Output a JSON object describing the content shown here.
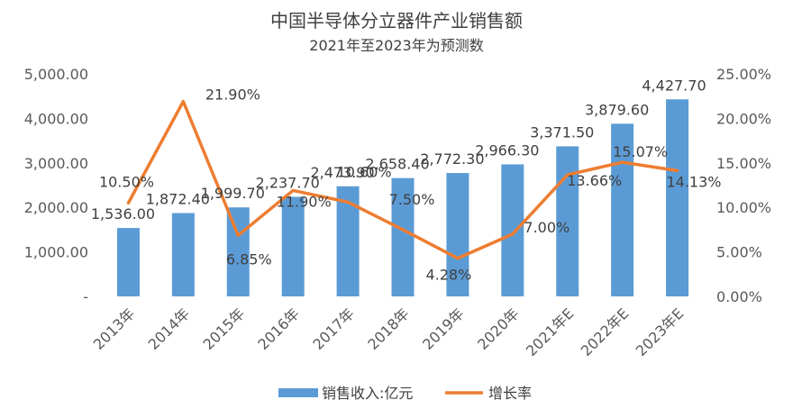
{
  "chart_data": {
    "type": "bar",
    "title": "中国半导体分立器件产业销售额",
    "subtitle": "2021年至2023年为预测数",
    "categories": [
      "2013年",
      "2014年",
      "2015年",
      "2016年",
      "2017年",
      "2018年",
      "2019年",
      "2020年",
      "2021年E",
      "2022年E",
      "2023年E"
    ],
    "series": [
      {
        "name": "销售收入:亿元",
        "type": "bar",
        "axis": "left",
        "color": "#5B9BD5",
        "values": [
          1536.0,
          1872.4,
          1999.7,
          2237.7,
          2473.9,
          2658.4,
          2772.3,
          2966.3,
          3371.5,
          3879.6,
          4427.7
        ],
        "labels": [
          "1,536.00",
          "1,872.40",
          "1,999.70",
          "2,237.70",
          "2,473.90",
          "2,658.40",
          "2,772.30",
          "2,966.30",
          "3,371.50",
          "3,879.60",
          "4,427.70"
        ]
      },
      {
        "name": "增长率",
        "type": "line",
        "axis": "right",
        "color": "#ED7D31",
        "values": [
          10.5,
          21.9,
          6.85,
          11.9,
          10.6,
          7.5,
          4.28,
          7.0,
          13.66,
          15.07,
          14.13
        ],
        "labels": [
          "10.50%",
          "21.90%",
          "6.85%",
          "11.90%",
          "10.60%",
          "7.50%",
          "4.28%",
          "7.00%",
          "13.66%",
          "15.07%",
          "14.13%"
        ]
      }
    ],
    "y_left": {
      "min": 0,
      "max": 5000,
      "ticks": [
        "-",
        "1,000.00",
        "2,000.00",
        "3,000.00",
        "4,000.00",
        "5,000.00"
      ]
    },
    "y_right": {
      "min": 0,
      "max": 25,
      "ticks": [
        "0.00%",
        "5.00%",
        "10.00%",
        "15.00%",
        "20.00%",
        "25.00%"
      ]
    },
    "grid": false,
    "legend_position": "bottom"
  }
}
